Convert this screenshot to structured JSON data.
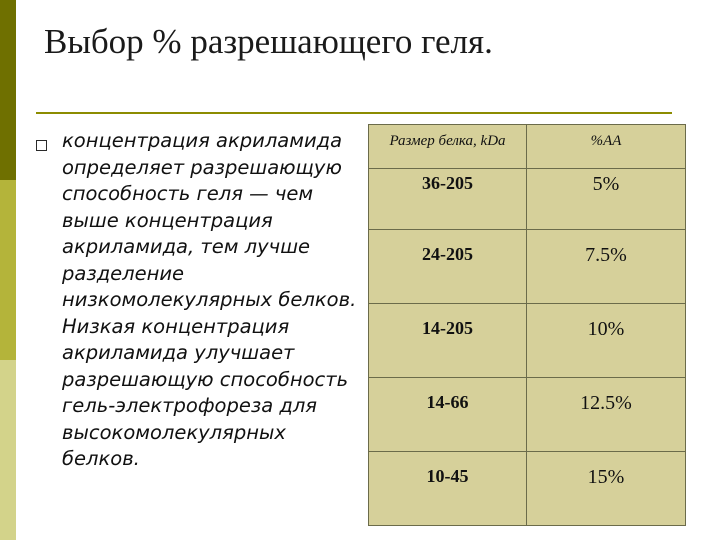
{
  "slide": {
    "title": "Выбор % разрешающего геля.",
    "bullet": "концентрация акриламида определяет разрешающую способность геля — чем выше концентрация акриламида, тем лучше разделение низкомолекулярных белков. Низкая концентрация акриламида улучшает разрешающую способность гель-электрофореза для высокомолекулярных белков."
  },
  "table": {
    "headers": [
      "Размер белка, kDa",
      "%AA"
    ],
    "rows": [
      [
        "36-205",
        "5%"
      ],
      [
        "24-205",
        "7.5%"
      ],
      [
        "14-205",
        "10%"
      ],
      [
        "14-66",
        "12.5%"
      ],
      [
        "10-45",
        "15%"
      ]
    ]
  },
  "colors": {
    "sidebar_dark": "#6f7000",
    "sidebar_mid": "#b4b43a",
    "sidebar_light": "#d3d38a",
    "table_fill": "#d6d09a",
    "rule": "#8c8c00"
  }
}
